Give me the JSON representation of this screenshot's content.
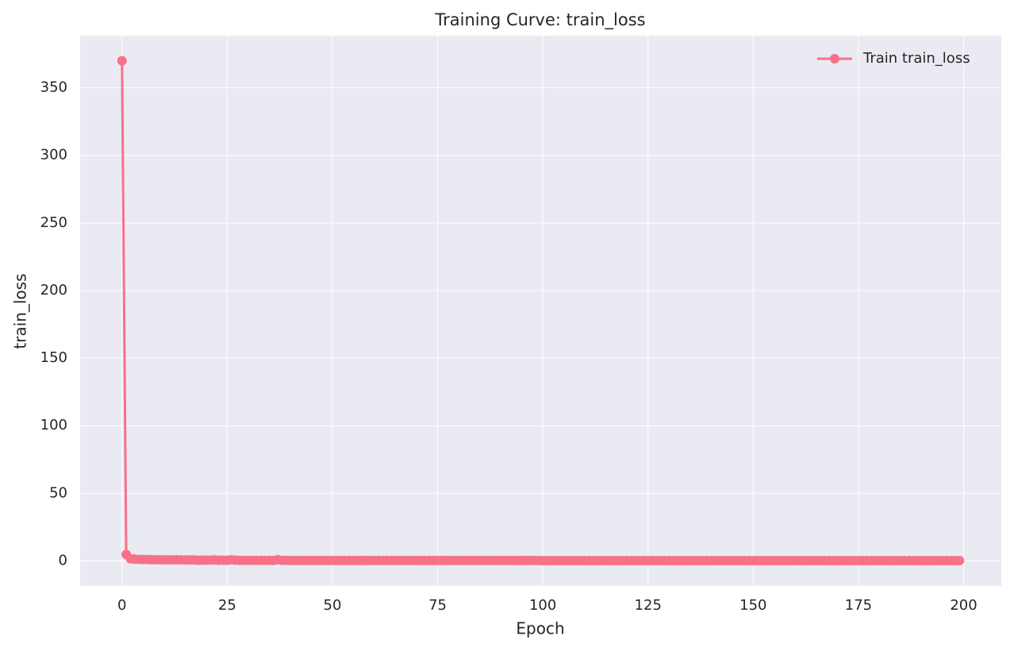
{
  "chart_data": {
    "type": "line",
    "title": "Training Curve: train_loss",
    "xlabel": "Epoch",
    "ylabel": "train_loss",
    "x": [
      0,
      1,
      2,
      3,
      4,
      5,
      6,
      7,
      8,
      9,
      10,
      11,
      12,
      13,
      14,
      15,
      16,
      17,
      18,
      19,
      20,
      21,
      22,
      23,
      24,
      25,
      26,
      27,
      28,
      29,
      30,
      31,
      32,
      33,
      34,
      35,
      36,
      37,
      38,
      39,
      40,
      41,
      42,
      43,
      44,
      45,
      46,
      47,
      48,
      49,
      50,
      51,
      52,
      53,
      54,
      55,
      56,
      57,
      58,
      59,
      60,
      61,
      62,
      63,
      64,
      65,
      66,
      67,
      68,
      69,
      70,
      71,
      72,
      73,
      74,
      75,
      76,
      77,
      78,
      79,
      80,
      81,
      82,
      83,
      84,
      85,
      86,
      87,
      88,
      89,
      90,
      91,
      92,
      93,
      94,
      95,
      96,
      97,
      98,
      99,
      100,
      101,
      102,
      103,
      104,
      105,
      106,
      107,
      108,
      109,
      110,
      111,
      112,
      113,
      114,
      115,
      116,
      117,
      118,
      119,
      120,
      121,
      122,
      123,
      124,
      125,
      126,
      127,
      128,
      129,
      130,
      131,
      132,
      133,
      134,
      135,
      136,
      137,
      138,
      139,
      140,
      141,
      142,
      143,
      144,
      145,
      146,
      147,
      148,
      149,
      150,
      151,
      152,
      153,
      154,
      155,
      156,
      157,
      158,
      159,
      160,
      161,
      162,
      163,
      164,
      165,
      166,
      167,
      168,
      169,
      170,
      171,
      172,
      173,
      174,
      175,
      176,
      177,
      178,
      179,
      180,
      181,
      182,
      183,
      184,
      185,
      186,
      187,
      188,
      189,
      190,
      191,
      192,
      193,
      194,
      195,
      196,
      197,
      198,
      199
    ],
    "series": [
      {
        "name": "Train train_loss",
        "color": "#f77189",
        "values": [
          370,
          4.8,
          1.6,
          1.3,
          1.1,
          1,
          1,
          0.9,
          0.9,
          0.9,
          0.8,
          0.8,
          0.8,
          0.8,
          0.7,
          0.7,
          0.7,
          0.7,
          0.5,
          0.6,
          0.6,
          0.6,
          0.7,
          0.5,
          0.5,
          0.5,
          0.8,
          0.5,
          0.4,
          0.4,
          0.4,
          0.4,
          0.4,
          0.4,
          0.4,
          0.4,
          0.4,
          0.9,
          0.4,
          0.4,
          0.3,
          0.3,
          0.3,
          0.3,
          0.3,
          0.3,
          0.3,
          0.3,
          0.3,
          0.3,
          0.3,
          0.3,
          0.3,
          0.3,
          0.3,
          0.3,
          0.3,
          0.3,
          0.3,
          0.3,
          0.3,
          0.3,
          0.3,
          0.3,
          0.3,
          0.3,
          0.3,
          0.3,
          0.3,
          0.3,
          0.3,
          0.3,
          0.3,
          0.3,
          0.3,
          0.3,
          0.3,
          0.3,
          0.3,
          0.3,
          0.3,
          0.3,
          0.3,
          0.3,
          0.3,
          0.3,
          0.3,
          0.3,
          0.3,
          0.3,
          0.3,
          0.3,
          0.3,
          0.3,
          0.3,
          0.3,
          0.3,
          0.3,
          0.3,
          0.3,
          0.2,
          0.2,
          0.2,
          0.2,
          0.2,
          0.2,
          0.2,
          0.2,
          0.2,
          0.2,
          0.2,
          0.2,
          0.2,
          0.2,
          0.2,
          0.2,
          0.2,
          0.2,
          0.2,
          0.2,
          0.2,
          0.2,
          0.2,
          0.2,
          0.2,
          0.2,
          0.2,
          0.2,
          0.2,
          0.2,
          0.2,
          0.2,
          0.2,
          0.2,
          0.2,
          0.2,
          0.2,
          0.2,
          0.2,
          0.2,
          0.2,
          0.2,
          0.2,
          0.2,
          0.2,
          0.2,
          0.2,
          0.2,
          0.2,
          0.2,
          0.2,
          0.2,
          0.2,
          0.2,
          0.2,
          0.2,
          0.2,
          0.2,
          0.2,
          0.2,
          0.2,
          0.2,
          0.2,
          0.2,
          0.2,
          0.2,
          0.2,
          0.2,
          0.2,
          0.2,
          0.2,
          0.2,
          0.2,
          0.2,
          0.2,
          0.2,
          0.2,
          0.2,
          0.2,
          0.2,
          0.2,
          0.2,
          0.2,
          0.2,
          0.2,
          0.2,
          0.2,
          0.2,
          0.2,
          0.2,
          0.2,
          0.2,
          0.2,
          0.2,
          0.2,
          0.2,
          0.2,
          0.2,
          0.2,
          0.2
        ]
      }
    ],
    "xlim": [
      -9.95,
      208.95
    ],
    "ylim": [
      -18.5,
      388.5
    ],
    "xticks": [
      0,
      25,
      50,
      75,
      100,
      125,
      150,
      175,
      200
    ],
    "yticks": [
      0,
      50,
      100,
      150,
      200,
      250,
      300,
      350
    ],
    "grid": true,
    "legend": "upper right"
  }
}
